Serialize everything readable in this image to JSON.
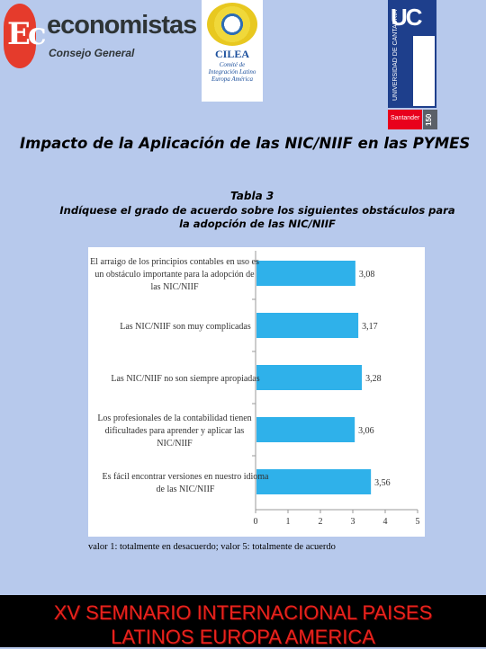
{
  "logos": {
    "economistas": {
      "name": "economistas",
      "subtitle": "Consejo General",
      "badge_mark": "Ec",
      "color": "#e53b2c"
    },
    "cilea": {
      "name": "CILEA",
      "description": "Comité de Integración Latino Europa América",
      "color": "#1b4f9c"
    },
    "uc": {
      "name": "UC",
      "vertical_text": "UNIVERSIDAD DE CANTABRIA",
      "color": "#1e3f8c"
    },
    "santander": {
      "name": "Santander",
      "color": "#e8001c"
    },
    "anniversary": {
      "name": "150"
    }
  },
  "slide_title": "Impacto de la Aplicación de las NIC/NIIF en las PYMES",
  "table_label": "Tabla 3",
  "question": "Indíquese el grado de acuerdo sobre los siguientes obstáculos para la adopción de las NIC/NIIF",
  "footnote": "valor 1: totalmente en desacuerdo; valor 5: totalmente de acuerdo",
  "footer": {
    "line1": "XV SEMNARIO INTERNACIONAL PAISES",
    "line2": "LATINOS EUROPA AMERICA"
  },
  "chart_data": {
    "type": "bar",
    "orientation": "horizontal",
    "categories": [
      [
        "El arraigo de los principios contables en uso es",
        "un obstáculo importante para la adopción de",
        "las NIC/NIIF"
      ],
      [
        "Las NIC/NIIF son muy complicadas"
      ],
      [
        "Las NIC/NIIF no son siempre apropiadas"
      ],
      [
        "Los profesionales de la contabilidad tienen",
        "dificultades para aprender y aplicar las",
        "NIC/NIIF"
      ],
      [
        "Es fácil encontrar versiones en nuestro idioma",
        "de las NIC/NIIF"
      ]
    ],
    "values": [
      3.08,
      3.17,
      3.28,
      3.06,
      3.56
    ],
    "value_labels": [
      "3,08",
      "3,17",
      "3,28",
      "3,06",
      "3,56"
    ],
    "xlim": [
      0,
      5
    ],
    "xticks": [
      "0",
      "1",
      "2",
      "3",
      "4",
      "5"
    ],
    "grid": false,
    "bar_color": "#2fb1ea"
  }
}
